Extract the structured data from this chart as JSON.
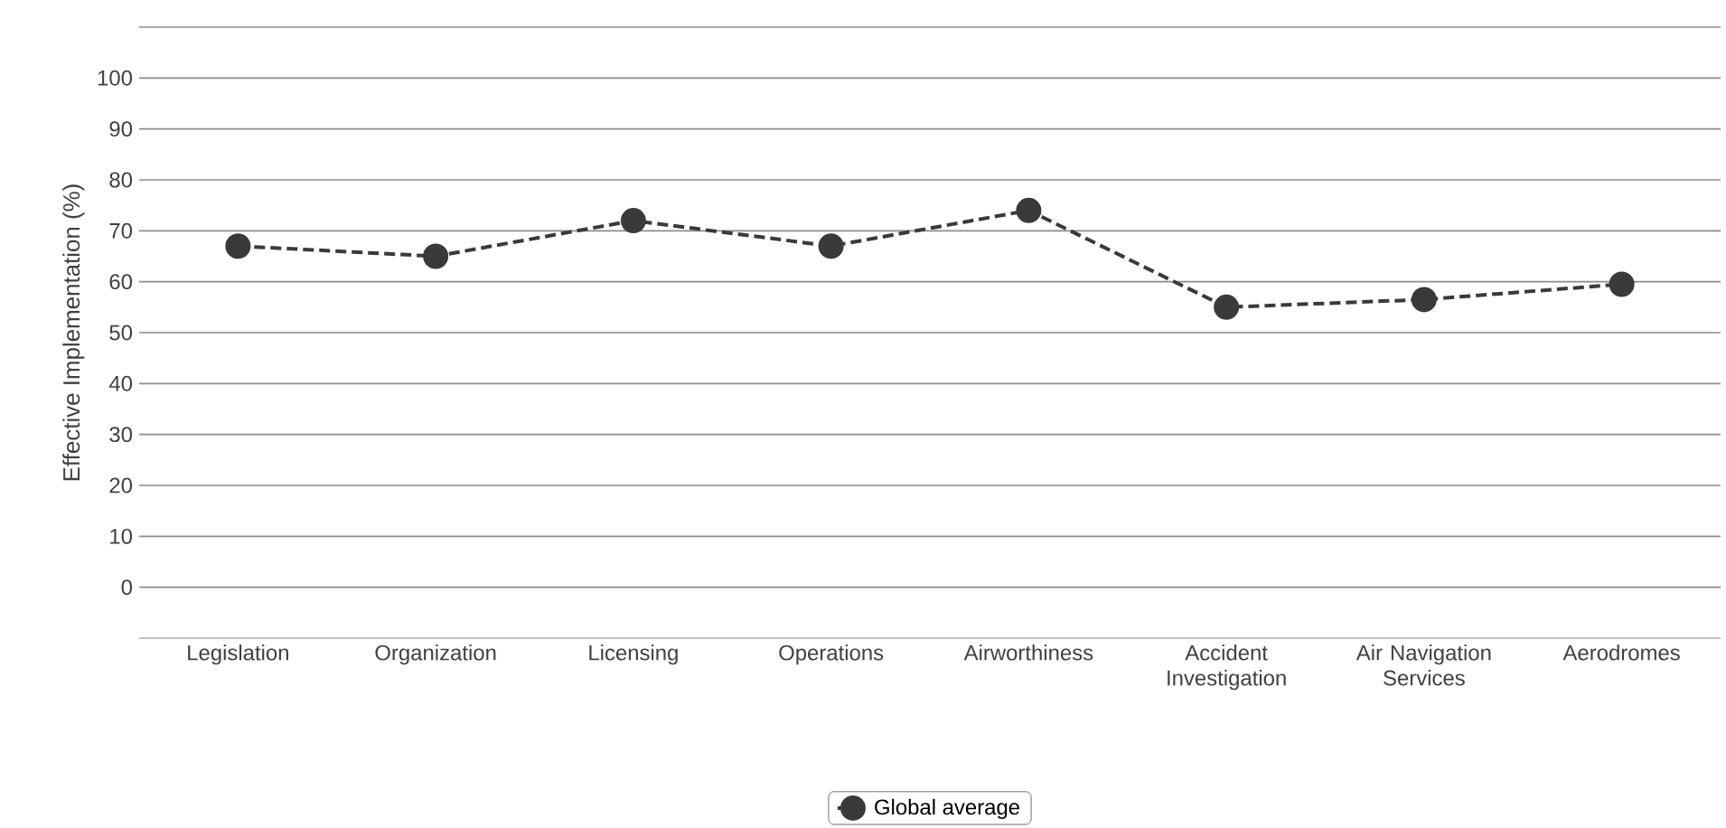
{
  "chart_data": {
    "type": "line",
    "ylabel": "Effective Implementation (%)",
    "categories": [
      "Legislation",
      "Organization",
      "Licensing",
      "Operations",
      "Airworthiness",
      "Accident Investigation",
      "Air Navigation Services",
      "Aerodromes"
    ],
    "series": [
      {
        "name": "Global average",
        "color": "#3a3a3a",
        "values": [
          67,
          65,
          72,
          67,
          74,
          55,
          56.5,
          59.5
        ]
      }
    ],
    "ylim": [
      -10,
      110
    ],
    "yticks": [
      0,
      10,
      20,
      30,
      40,
      50,
      60,
      70,
      80,
      90,
      100,
      {
        "value": 110,
        "label": null
      }
    ],
    "grid": "y",
    "legend": "bottom",
    "marker": "circle",
    "line_style": "dashed"
  }
}
